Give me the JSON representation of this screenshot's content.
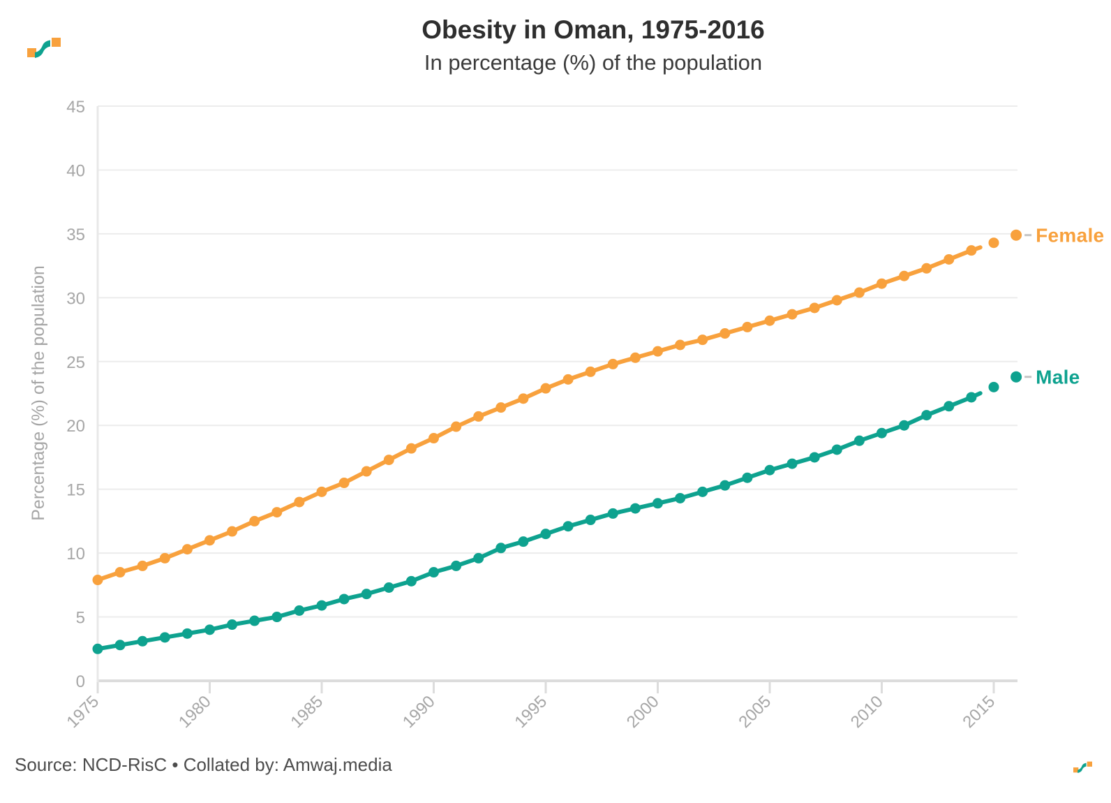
{
  "header": {
    "logo_name": "amwaj-media-logo"
  },
  "footer": {
    "source": "Source: NCD-RisC • Collated by: Amwaj.media"
  },
  "logo": {
    "orange": "#F8A13D",
    "teal": "#0EA28F"
  },
  "chart_data": {
    "type": "line",
    "title": "Obesity in Oman, 1975-2016",
    "subtitle": "In percentage (%) of the population",
    "xlabel": "",
    "ylabel": "Percentage (%) of the population",
    "ylim": [
      0,
      45
    ],
    "grid": true,
    "legend_position": "end-of-line-labels",
    "x": [
      1975,
      1976,
      1977,
      1978,
      1979,
      1980,
      1981,
      1982,
      1983,
      1984,
      1985,
      1986,
      1987,
      1988,
      1989,
      1990,
      1991,
      1992,
      1993,
      1994,
      1995,
      1996,
      1997,
      1998,
      1999,
      2000,
      2001,
      2002,
      2003,
      2004,
      2005,
      2006,
      2007,
      2008,
      2009,
      2010,
      2011,
      2012,
      2013,
      2014,
      2015,
      2016
    ],
    "xticks": [
      1975,
      1980,
      1985,
      1990,
      1995,
      2000,
      2005,
      2010,
      2015
    ],
    "yticks": [
      0,
      5,
      10,
      15,
      20,
      25,
      30,
      35,
      40,
      45
    ],
    "series": [
      {
        "name": "Female",
        "color": "#F8A13D",
        "values": [
          7.9,
          8.5,
          9.0,
          9.6,
          10.3,
          11.0,
          11.7,
          12.5,
          13.2,
          14.0,
          14.8,
          15.5,
          16.4,
          17.3,
          18.2,
          19.0,
          19.9,
          20.7,
          21.4,
          22.1,
          22.9,
          23.6,
          24.2,
          24.8,
          25.3,
          25.8,
          26.3,
          26.7,
          27.2,
          27.7,
          28.2,
          28.7,
          29.2,
          29.8,
          30.4,
          31.1,
          31.7,
          32.3,
          33.0,
          33.7,
          34.3,
          34.9
        ]
      },
      {
        "name": "Male",
        "color": "#0EA28F",
        "values": [
          2.5,
          2.8,
          3.1,
          3.4,
          3.7,
          4.0,
          4.4,
          4.7,
          5.0,
          5.5,
          5.9,
          6.4,
          6.8,
          7.3,
          7.8,
          8.5,
          9.0,
          9.6,
          10.4,
          10.9,
          11.5,
          12.1,
          12.6,
          13.1,
          13.5,
          13.9,
          14.3,
          14.8,
          15.3,
          15.9,
          16.5,
          17.0,
          17.5,
          18.1,
          18.8,
          19.4,
          20.0,
          20.8,
          21.5,
          22.2,
          23.0,
          23.8
        ]
      }
    ]
  }
}
